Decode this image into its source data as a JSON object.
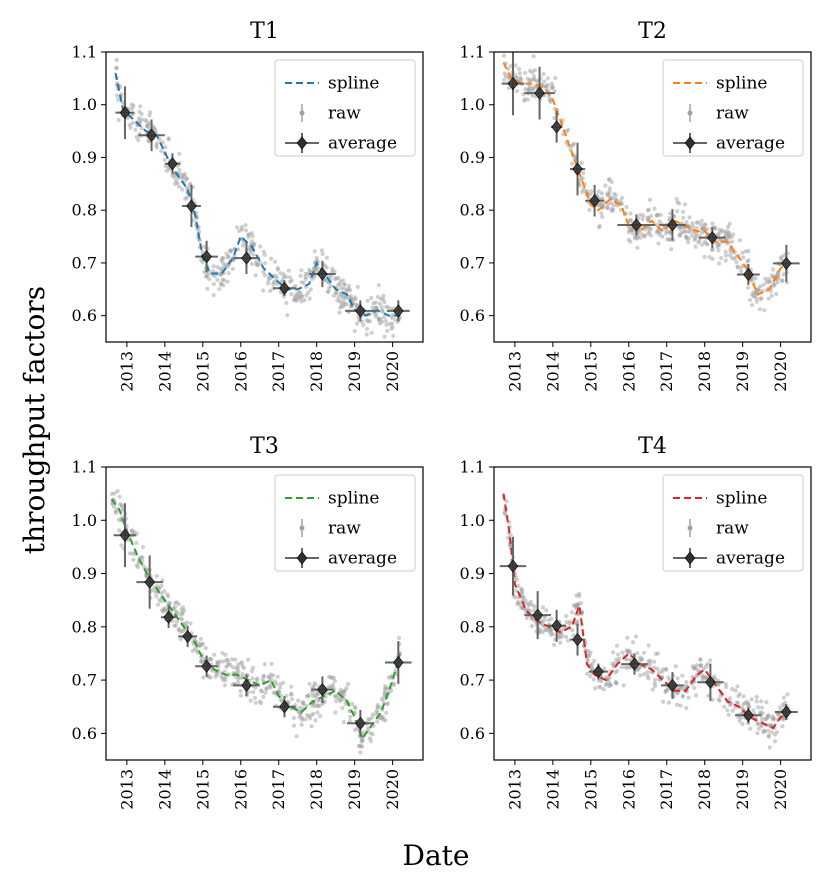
{
  "figure": {
    "ylabel": "throughput factors",
    "xlabel": "Date"
  },
  "colors": {
    "T1": "#1f77b4",
    "T2": "#ff7f0e",
    "T3": "#2ca02c",
    "T4": "#d62728",
    "raw": "#a0a0a0",
    "average": "#303030"
  },
  "chart_data": [
    {
      "type": "scatter",
      "title": "T1",
      "xlim": [
        2012.45,
        2020.8
      ],
      "ylim": [
        0.55,
        1.1
      ],
      "xticks": [
        2013,
        2014,
        2015,
        2016,
        2017,
        2018,
        2019,
        2020
      ],
      "xtick_labels": [
        "2013",
        "2014",
        "2015",
        "2016",
        "2017",
        "2018",
        "2019",
        "2020"
      ],
      "yticks": [
        0.6,
        0.7,
        0.8,
        0.9,
        1.0,
        1.1
      ],
      "ytick_labels": [
        "0.6",
        "0.7",
        "0.8",
        "0.9",
        "1.0",
        "1.1"
      ],
      "legend": [
        "spline",
        "raw",
        "average"
      ],
      "spline": {
        "x": [
          2012.7,
          2012.9,
          2013.2,
          2013.5,
          2013.8,
          2014.0,
          2014.2,
          2014.4,
          2014.6,
          2014.8,
          2015.0,
          2015.2,
          2015.5,
          2015.8,
          2016.0,
          2016.3,
          2016.6,
          2016.9,
          2017.2,
          2017.5,
          2017.8,
          2018.0,
          2018.2,
          2018.5,
          2018.8,
          2019.0,
          2019.3,
          2019.6,
          2019.9,
          2020.2
        ],
        "y": [
          1.06,
          0.99,
          0.97,
          0.95,
          0.94,
          0.91,
          0.88,
          0.86,
          0.84,
          0.79,
          0.71,
          0.68,
          0.68,
          0.71,
          0.75,
          0.73,
          0.69,
          0.67,
          0.65,
          0.65,
          0.66,
          0.7,
          0.68,
          0.65,
          0.64,
          0.61,
          0.6,
          0.61,
          0.6,
          0.6
        ]
      },
      "average": {
        "x": [
          2012.95,
          2013.65,
          2014.2,
          2014.7,
          2015.1,
          2016.15,
          2017.15,
          2018.15,
          2019.15,
          2020.15
        ],
        "y": [
          0.985,
          0.942,
          0.888,
          0.808,
          0.712,
          0.709,
          0.652,
          0.679,
          0.609,
          0.609
        ],
        "xerr": [
          0.25,
          0.35,
          0.2,
          0.25,
          0.3,
          0.35,
          0.3,
          0.35,
          0.4,
          0.3
        ],
        "yerr": [
          0.05,
          0.03,
          0.02,
          0.04,
          0.03,
          0.03,
          0.015,
          0.025,
          0.02,
          0.02
        ]
      }
    },
    {
      "type": "scatter",
      "title": "T2",
      "xlim": [
        2012.45,
        2020.8
      ],
      "ylim": [
        0.55,
        1.1
      ],
      "xticks": [
        2013,
        2014,
        2015,
        2016,
        2017,
        2018,
        2019,
        2020
      ],
      "xtick_labels": [
        "2013",
        "2014",
        "2015",
        "2016",
        "2017",
        "2018",
        "2019",
        "2020"
      ],
      "yticks": [
        0.6,
        0.7,
        0.8,
        0.9,
        1.0,
        1.1
      ],
      "ytick_labels": [
        "0.6",
        "0.7",
        "0.8",
        "0.9",
        "1.0",
        "1.1"
      ],
      "legend": [
        "spline",
        "raw",
        "average"
      ],
      "spline": {
        "x": [
          2012.7,
          2012.9,
          2013.2,
          2013.5,
          2013.8,
          2014.0,
          2014.2,
          2014.4,
          2014.6,
          2014.8,
          2015.0,
          2015.2,
          2015.5,
          2015.8,
          2016.0,
          2016.3,
          2016.6,
          2016.9,
          2017.2,
          2017.5,
          2017.8,
          2018.0,
          2018.3,
          2018.6,
          2018.9,
          2019.1,
          2019.4,
          2019.7,
          2020.0,
          2020.2
        ],
        "y": [
          1.08,
          1.05,
          1.04,
          1.04,
          1.03,
          1.01,
          0.97,
          0.93,
          0.89,
          0.85,
          0.81,
          0.8,
          0.82,
          0.81,
          0.77,
          0.76,
          0.78,
          0.76,
          0.78,
          0.77,
          0.76,
          0.76,
          0.74,
          0.74,
          0.71,
          0.69,
          0.64,
          0.65,
          0.69,
          0.7
        ]
      },
      "average": {
        "x": [
          2012.95,
          2013.65,
          2014.1,
          2014.65,
          2015.1,
          2016.2,
          2017.15,
          2018.2,
          2019.15,
          2020.15
        ],
        "y": [
          1.04,
          1.022,
          0.958,
          0.878,
          0.818,
          0.772,
          0.772,
          0.748,
          0.678,
          0.699
        ],
        "xerr": [
          0.3,
          0.4,
          0.15,
          0.2,
          0.25,
          0.5,
          0.35,
          0.35,
          0.3,
          0.35
        ],
        "yerr": [
          0.06,
          0.05,
          0.03,
          0.05,
          0.03,
          0.02,
          0.03,
          0.02,
          0.02,
          0.035
        ]
      }
    },
    {
      "type": "scatter",
      "title": "T3",
      "xlim": [
        2012.45,
        2020.8
      ],
      "ylim": [
        0.55,
        1.1
      ],
      "xticks": [
        2013,
        2014,
        2015,
        2016,
        2017,
        2018,
        2019,
        2020
      ],
      "xtick_labels": [
        "2013",
        "2014",
        "2015",
        "2016",
        "2017",
        "2018",
        "2019",
        "2020"
      ],
      "yticks": [
        0.6,
        0.7,
        0.8,
        0.9,
        1.0,
        1.1
      ],
      "ytick_labels": [
        "0.6",
        "0.7",
        "0.8",
        "0.9",
        "1.0",
        "1.1"
      ],
      "legend": [
        "spline",
        "raw",
        "average"
      ],
      "spline": {
        "x": [
          2012.6,
          2012.8,
          2013.0,
          2013.3,
          2013.6,
          2013.9,
          2014.2,
          2014.5,
          2014.8,
          2015.0,
          2015.3,
          2015.6,
          2015.9,
          2016.2,
          2016.5,
          2016.8,
          2017.0,
          2017.3,
          2017.6,
          2017.9,
          2018.2,
          2018.5,
          2018.8,
          2019.0,
          2019.2,
          2019.4,
          2019.7,
          2020.0,
          2020.2
        ],
        "y": [
          1.04,
          1.02,
          0.98,
          0.93,
          0.89,
          0.86,
          0.83,
          0.8,
          0.77,
          0.74,
          0.72,
          0.71,
          0.71,
          0.7,
          0.69,
          0.7,
          0.67,
          0.65,
          0.64,
          0.66,
          0.67,
          0.68,
          0.66,
          0.63,
          0.59,
          0.61,
          0.64,
          0.7,
          0.75
        ]
      },
      "average": {
        "x": [
          2012.95,
          2013.6,
          2014.1,
          2014.6,
          2015.1,
          2016.15,
          2017.15,
          2018.15,
          2019.15,
          2020.15
        ],
        "y": [
          0.972,
          0.884,
          0.818,
          0.782,
          0.726,
          0.69,
          0.65,
          0.682,
          0.619,
          0.733
        ],
        "xerr": [
          0.3,
          0.35,
          0.2,
          0.25,
          0.3,
          0.35,
          0.3,
          0.3,
          0.35,
          0.35
        ],
        "yerr": [
          0.06,
          0.05,
          0.02,
          0.02,
          0.02,
          0.02,
          0.02,
          0.025,
          0.025,
          0.04
        ]
      }
    },
    {
      "type": "scatter",
      "title": "T4",
      "xlim": [
        2012.45,
        2020.8
      ],
      "ylim": [
        0.55,
        1.1
      ],
      "xticks": [
        2013,
        2014,
        2015,
        2016,
        2017,
        2018,
        2019,
        2020
      ],
      "xtick_labels": [
        "2013",
        "2014",
        "2015",
        "2016",
        "2017",
        "2018",
        "2019",
        "2020"
      ],
      "yticks": [
        0.6,
        0.7,
        0.8,
        0.9,
        1.0,
        1.1
      ],
      "ytick_labels": [
        "0.6",
        "0.7",
        "0.8",
        "0.9",
        "1.0",
        "1.1"
      ],
      "legend": [
        "spline",
        "raw",
        "average"
      ],
      "spline": {
        "x": [
          2012.7,
          2012.85,
          2013.0,
          2013.3,
          2013.6,
          2013.9,
          2014.2,
          2014.5,
          2014.7,
          2014.9,
          2015.1,
          2015.4,
          2015.7,
          2016.0,
          2016.3,
          2016.6,
          2016.9,
          2017.2,
          2017.5,
          2017.8,
          2018.0,
          2018.3,
          2018.6,
          2018.9,
          2019.2,
          2019.5,
          2019.8,
          2020.0,
          2020.2
        ],
        "y": [
          1.05,
          0.98,
          0.88,
          0.83,
          0.81,
          0.8,
          0.79,
          0.8,
          0.84,
          0.73,
          0.71,
          0.7,
          0.73,
          0.75,
          0.73,
          0.72,
          0.7,
          0.68,
          0.68,
          0.71,
          0.72,
          0.69,
          0.66,
          0.65,
          0.63,
          0.62,
          0.61,
          0.63,
          0.64
        ]
      },
      "average": {
        "x": [
          2012.95,
          2013.6,
          2014.1,
          2014.65,
          2015.2,
          2016.15,
          2017.15,
          2018.15,
          2019.15,
          2020.15
        ],
        "y": [
          0.914,
          0.822,
          0.802,
          0.776,
          0.716,
          0.73,
          0.69,
          0.696,
          0.634,
          0.64
        ],
        "xerr": [
          0.35,
          0.35,
          0.25,
          0.2,
          0.25,
          0.35,
          0.3,
          0.35,
          0.35,
          0.3
        ],
        "yerr": [
          0.055,
          0.045,
          0.03,
          0.03,
          0.015,
          0.02,
          0.025,
          0.035,
          0.015,
          0.015
        ]
      }
    }
  ]
}
